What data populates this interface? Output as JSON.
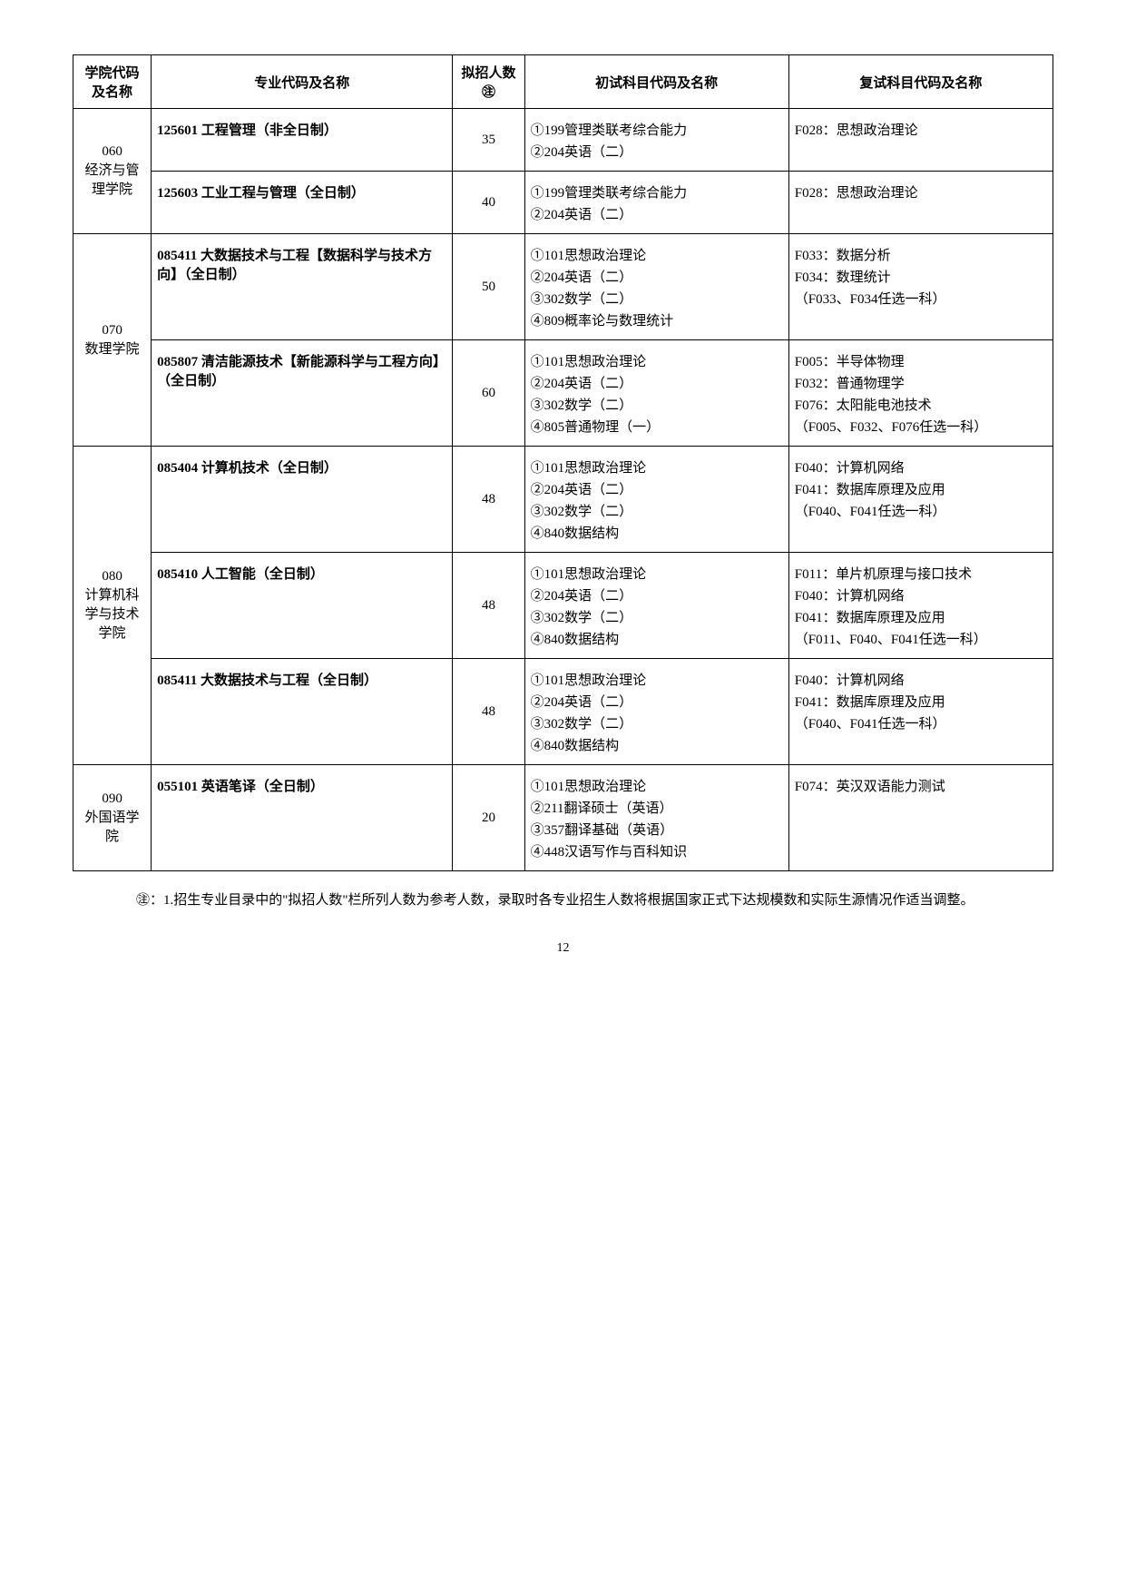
{
  "headers": {
    "college": "学院代码及名称",
    "major": "专业代码及名称",
    "count": "拟招人数㊟",
    "initial": "初试科目代码及名称",
    "retest": "复试科目代码及名称"
  },
  "rows": [
    {
      "college": "060\n经济与管理学院",
      "college_rowspan": 2,
      "major": "125601 工程管理（非全日制）",
      "count": "35",
      "initial": [
        "①199管理类联考综合能力",
        "②204英语（二）"
      ],
      "retest": [
        "F028：思想政治理论"
      ]
    },
    {
      "major": "125603 工业工程与管理（全日制）",
      "count": "40",
      "initial": [
        "①199管理类联考综合能力",
        "②204英语（二）"
      ],
      "retest": [
        "F028：思想政治理论"
      ]
    },
    {
      "college": "070\n数理学院",
      "college_rowspan": 2,
      "major": "085411 大数据技术与工程【数据科学与技术方向】（全日制）",
      "count": "50",
      "initial": [
        "①101思想政治理论",
        "②204英语（二）",
        "③302数学（二）",
        "④809概率论与数理统计"
      ],
      "retest": [
        "F033：数据分析",
        "F034：数理统计",
        "（F033、F034任选一科）"
      ]
    },
    {
      "major": "085807 清洁能源技术【新能源科学与工程方向】（全日制）",
      "count": "60",
      "initial": [
        "①101思想政治理论",
        "②204英语（二）",
        "③302数学（二）",
        "④805普通物理（一）"
      ],
      "retest": [
        "F005：半导体物理",
        "F032：普通物理学",
        "F076：太阳能电池技术",
        "（F005、F032、F076任选一科）"
      ]
    },
    {
      "college": "080\n计算机科学与技术学院",
      "college_rowspan": 3,
      "major": "085404 计算机技术（全日制）",
      "count": "48",
      "initial": [
        "①101思想政治理论",
        "②204英语（二）",
        "③302数学（二）",
        "④840数据结构"
      ],
      "retest": [
        "F040：计算机网络",
        "F041：数据库原理及应用",
        "（F040、F041任选一科）"
      ]
    },
    {
      "major": "085410 人工智能（全日制）",
      "count": "48",
      "initial": [
        "①101思想政治理论",
        "②204英语（二）",
        "③302数学（二）",
        "④840数据结构"
      ],
      "retest": [
        "F011：单片机原理与接口技术",
        "F040：计算机网络",
        "F041：数据库原理及应用",
        "（F011、F040、F041任选一科）"
      ]
    },
    {
      "major": "085411 大数据技术与工程（全日制）",
      "count": "48",
      "initial": [
        "①101思想政治理论",
        "②204英语（二）",
        "③302数学（二）",
        "④840数据结构"
      ],
      "retest": [
        "F040：计算机网络",
        "F041：数据库原理及应用",
        "（F040、F041任选一科）"
      ]
    },
    {
      "college": "090\n外国语学院",
      "college_rowspan": 1,
      "major": "055101 英语笔译（全日制）",
      "count": "20",
      "initial": [
        "①101思想政治理论",
        "②211翻译硕士（英语）",
        "③357翻译基础（英语）",
        "④448汉语写作与百科知识"
      ],
      "retest": [
        "F074：英汉双语能力测试"
      ]
    }
  ],
  "footnote": "㊟：1.招生专业目录中的\"拟招人数\"栏所列人数为参考人数，录取时各专业招生人数将根据国家正式下达规模数和实际生源情况作适当调整。",
  "page_number": "12"
}
